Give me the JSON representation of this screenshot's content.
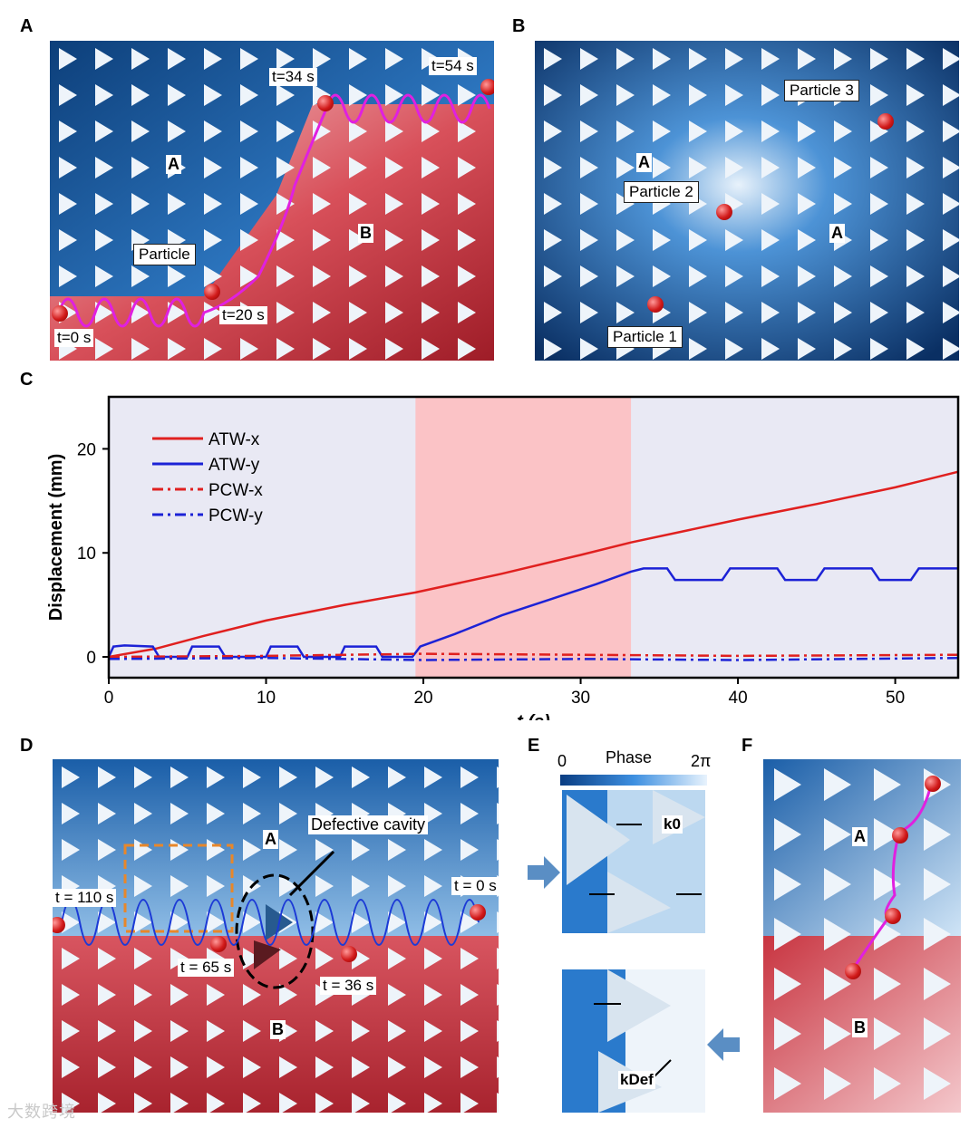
{
  "panels": {
    "A": "A",
    "B": "B",
    "C": "C",
    "D": "D",
    "E": "E",
    "F": "F"
  },
  "panel_a": {
    "region_a": "A",
    "region_b": "B",
    "particle": "Particle",
    "t0": "t=0 s",
    "t20": "t=20 s",
    "t34": "t=34 s",
    "t54": "t=54 s"
  },
  "panel_b": {
    "region_a1": "A",
    "region_a2": "A",
    "p1": "Particle 1",
    "p2": "Particle 2",
    "p3": "Particle 3"
  },
  "panel_d": {
    "region_a": "A",
    "region_b": "B",
    "cavity": "Defective cavity",
    "t110": "t = 110 s",
    "t65": "t = 65 s",
    "t36": "t = 36 s",
    "t0": "t = 0 s"
  },
  "panel_e": {
    "phase": "Phase",
    "min": "0",
    "max": "2π",
    "k0": "k0",
    "kdef": "kDef"
  },
  "panel_f": {
    "region_a": "A",
    "region_b": "B"
  },
  "watermark": "大数跨境",
  "colors": {
    "blue": "#1f5fa8",
    "red": "#c8323c",
    "magenta": "#e020e0",
    "trace_red": "#e0201f",
    "trace_blue": "#1c22d6"
  },
  "chart_data": {
    "type": "line",
    "title": "",
    "xlabel": "t (s)",
    "ylabel": "Displacement (mm)",
    "xlim": [
      0,
      54
    ],
    "ylim": [
      -2,
      25
    ],
    "xticks": [
      0,
      10,
      20,
      30,
      40,
      50
    ],
    "yticks": [
      0,
      10,
      20
    ],
    "highlight_region": [
      19.5,
      33.2
    ],
    "legend": [
      "ATW-x",
      "ATW-y",
      "PCW-x",
      "PCW-y"
    ],
    "series": [
      {
        "name": "ATW-x",
        "style": "solid",
        "color": "#e0201f",
        "x": [
          0,
          3,
          6,
          10,
          15,
          19.5,
          25,
          30,
          33.2,
          40,
          45,
          50,
          54
        ],
        "y": [
          0,
          0.8,
          2,
          3.5,
          5,
          6.2,
          8,
          9.8,
          11,
          13.2,
          14.7,
          16.3,
          17.8
        ]
      },
      {
        "name": "ATW-y",
        "style": "solid",
        "color": "#1c22d6",
        "x": [
          0,
          0.3,
          1,
          2.8,
          3.2,
          5,
          5.3,
          7,
          7.4,
          10,
          10.3,
          12,
          12.4,
          14.7,
          15,
          17,
          17.4,
          19.3,
          19.8,
          22,
          25,
          28,
          31,
          33.2,
          34,
          35.5,
          36,
          39,
          39.5,
          42.5,
          43,
          45,
          45.5,
          48.5,
          49,
          51,
          51.5,
          54
        ],
        "y": [
          0,
          1,
          1.1,
          1,
          0,
          0,
          1,
          1,
          0,
          0,
          1,
          1,
          0,
          0,
          1,
          1,
          0,
          0,
          1,
          2.2,
          4,
          5.5,
          7,
          8.2,
          8.5,
          8.5,
          7.4,
          7.4,
          8.5,
          8.5,
          7.4,
          7.4,
          8.5,
          8.5,
          7.4,
          7.4,
          8.5,
          8.5
        ]
      },
      {
        "name": "PCW-x",
        "style": "dashdot",
        "color": "#e0201f",
        "x": [
          0,
          10,
          20,
          30,
          40,
          54
        ],
        "y": [
          0,
          0.1,
          0.3,
          0.2,
          0.1,
          0.2
        ]
      },
      {
        "name": "PCW-y",
        "style": "dashdot",
        "color": "#1c22d6",
        "x": [
          0,
          10,
          20,
          30,
          40,
          54
        ],
        "y": [
          -0.2,
          -0.1,
          -0.3,
          -0.2,
          -0.3,
          -0.1
        ]
      }
    ]
  }
}
